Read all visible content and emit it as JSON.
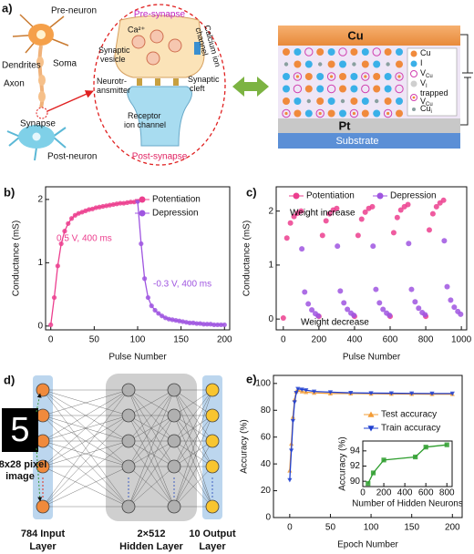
{
  "panel_a": {
    "label": "a)",
    "neuron": {
      "pre": "Pre-neuron",
      "dendrites": "Dendrites",
      "soma": "Soma",
      "axon": "Axon",
      "synapse": "Synapse",
      "post": "Post-neuron"
    },
    "synapse": {
      "pre": "Pre-synapse",
      "ion": "Ca²⁺",
      "vesicle": [
        "Synaptic",
        "vesicle"
      ],
      "channel": [
        "Calcium ion",
        "channel"
      ],
      "transmitter": [
        "Neurotr-",
        "ansmitter"
      ],
      "cleft": [
        "Synaptic",
        "cleft"
      ],
      "receptor": [
        "Receptor",
        "ion channel"
      ],
      "post": "Post-synapse"
    },
    "device": {
      "top": "Cu",
      "bottom": "Pt",
      "substrate": "Substrate",
      "legend": [
        {
          "symbol": "Cu"
        },
        {
          "symbol": "I"
        },
        {
          "symbol": "V",
          "sub": "Cu"
        },
        {
          "symbol": "V",
          "sub": "I"
        },
        {
          "symbol": "trapped",
          "symbol2": "V",
          "sub": "Cu"
        },
        {
          "symbol": "Cu",
          "sub": "i"
        }
      ]
    }
  },
  "panel_d": {
    "label": "d)",
    "digit": "5",
    "image": [
      "28x28 pixel",
      "image"
    ],
    "layers": [
      [
        "784 Input",
        "Layer"
      ],
      [
        "2×512",
        "Hidden Layer"
      ],
      [
        "10 Output",
        "Layer"
      ]
    ]
  },
  "chart_data": [
    {
      "type": "line",
      "panel_label": "b)",
      "xlabel": "Pulse Number",
      "ylabel": "Conductance (mS)",
      "xlim": [
        -6,
        206
      ],
      "ylim": [
        -0.06,
        2.2
      ],
      "xticks": [
        0,
        50,
        100,
        150,
        200
      ],
      "yticks": [
        0,
        1,
        2
      ],
      "legend": "upper right",
      "series": [
        {
          "name": "Potentiation",
          "color": "#ec3e8e",
          "marker": "circle",
          "x": [
            0,
            4,
            8,
            12,
            16,
            20,
            24,
            28,
            32,
            36,
            40,
            44,
            48,
            52,
            56,
            60,
            64,
            68,
            72,
            76,
            80,
            84,
            88,
            92,
            96,
            100
          ],
          "values": [
            0.02,
            0.45,
            0.95,
            1.3,
            1.5,
            1.62,
            1.7,
            1.75,
            1.78,
            1.8,
            1.82,
            1.84,
            1.85,
            1.87,
            1.88,
            1.89,
            1.9,
            1.91,
            1.92,
            1.93,
            1.94,
            1.94,
            1.95,
            1.96,
            1.96,
            1.97
          ]
        },
        {
          "name": "Depression",
          "color": "#9f55e0",
          "marker": "circle",
          "x": [
            100,
            104,
            108,
            112,
            116,
            120,
            124,
            128,
            132,
            136,
            140,
            144,
            148,
            152,
            156,
            160,
            164,
            168,
            172,
            176,
            180,
            184,
            188,
            192,
            196,
            200
          ],
          "values": [
            1.97,
            1.3,
            0.75,
            0.45,
            0.32,
            0.25,
            0.2,
            0.16,
            0.13,
            0.11,
            0.1,
            0.09,
            0.08,
            0.07,
            0.06,
            0.05,
            0.05,
            0.04,
            0.04,
            0.03,
            0.03,
            0.03,
            0.02,
            0.02,
            0.02,
            0.02
          ]
        }
      ],
      "annotations": [
        {
          "text": "0.5 V, 400 ms",
          "color": "#ec3e8e"
        },
        {
          "text": "-0.3 V, 400 ms",
          "color": "#9f55e0"
        }
      ]
    },
    {
      "type": "scatter",
      "panel_label": "c)",
      "xlabel": "Pulse Number",
      "ylabel": "Conductance (mS)",
      "xlim": [
        -40,
        1030
      ],
      "ylim": [
        -0.2,
        2.45
      ],
      "xticks": [
        0,
        200,
        400,
        600,
        800,
        1000
      ],
      "yticks": [
        0,
        1,
        2
      ],
      "legend": "upper center",
      "series": [
        {
          "name": "Potentiation",
          "color": "#ec3e8e",
          "marker": "circle",
          "x": [
            0,
            20,
            40,
            60,
            80,
            100,
            200,
            220,
            240,
            260,
            280,
            300,
            400,
            420,
            440,
            460,
            480,
            500,
            600,
            620,
            640,
            660,
            680,
            700,
            800,
            820,
            840,
            860,
            880,
            900
          ],
          "values": [
            0.02,
            1.5,
            1.78,
            1.9,
            1.96,
            2.0,
            0.05,
            1.55,
            1.82,
            1.95,
            2.02,
            2.05,
            0.05,
            1.55,
            1.85,
            1.98,
            2.05,
            2.08,
            0.05,
            1.6,
            1.88,
            2.02,
            2.08,
            2.12,
            0.05,
            1.65,
            1.95,
            2.08,
            2.15,
            2.2
          ]
        },
        {
          "name": "Depression",
          "color": "#9f55e0",
          "marker": "circle",
          "x": [
            104,
            120,
            140,
            160,
            180,
            196,
            304,
            320,
            340,
            360,
            380,
            396,
            504,
            520,
            540,
            560,
            580,
            596,
            704,
            720,
            740,
            760,
            780,
            796,
            904,
            920,
            940,
            960,
            980,
            996
          ],
          "values": [
            1.3,
            0.5,
            0.28,
            0.17,
            0.1,
            0.06,
            1.35,
            0.52,
            0.3,
            0.18,
            0.11,
            0.07,
            1.35,
            0.55,
            0.3,
            0.18,
            0.11,
            0.07,
            1.4,
            0.55,
            0.32,
            0.2,
            0.12,
            0.08,
            1.45,
            0.6,
            0.35,
            0.22,
            0.14,
            0.09
          ]
        }
      ],
      "annotations": [
        {
          "text": "Weight increase",
          "color": "#000000"
        },
        {
          "text": "Weight decrease",
          "color": "#000000"
        }
      ]
    },
    {
      "type": "line",
      "panel_label": "e)",
      "xlabel": "Epoch Number",
      "ylabel": "Accuracy (%)",
      "xlim": [
        -20,
        212
      ],
      "ylim": [
        0,
        106
      ],
      "xticks": [
        0,
        50,
        100,
        150,
        200
      ],
      "yticks": [
        0,
        20,
        40,
        60,
        80,
        100
      ],
      "legend": "center right",
      "series": [
        {
          "name": "Test accuracy",
          "color": "#f39c35",
          "marker": "triangle",
          "x": [
            0,
            2,
            4,
            6,
            8,
            10,
            15,
            20,
            30,
            50,
            75,
            100,
            125,
            150,
            175,
            200
          ],
          "values": [
            35,
            55,
            75,
            88,
            94,
            95,
            94,
            93.5,
            93,
            92.5,
            92.5,
            92.3,
            92.2,
            92.1,
            92,
            92
          ]
        },
        {
          "name": "Train accuracy",
          "color": "#2040d0",
          "marker": "triangle-down",
          "x": [
            0,
            2,
            4,
            6,
            8,
            10,
            15,
            20,
            30,
            50,
            75,
            100,
            125,
            150,
            175,
            200
          ],
          "values": [
            28,
            50,
            72,
            86,
            93,
            96,
            95.5,
            95,
            94,
            93.5,
            93,
            92.8,
            92.7,
            92.6,
            92.5,
            92.5
          ]
        }
      ]
    },
    {
      "type": "line",
      "xlabel": "Number of Hidden Neurons",
      "ylabel": "Accuracy (%)",
      "xlim": [
        0,
        850
      ],
      "ylim": [
        89.3,
        95.3
      ],
      "xticks": [
        0,
        200,
        400,
        600,
        800
      ],
      "yticks": [
        90,
        92,
        94
      ],
      "series": [
        {
          "color": "#2e9e2e",
          "marker": "square",
          "x": [
            50,
            100,
            200,
            500,
            600,
            800
          ],
          "values": [
            89.7,
            91.1,
            92.8,
            93.2,
            94.5,
            94.8
          ]
        }
      ]
    }
  ]
}
